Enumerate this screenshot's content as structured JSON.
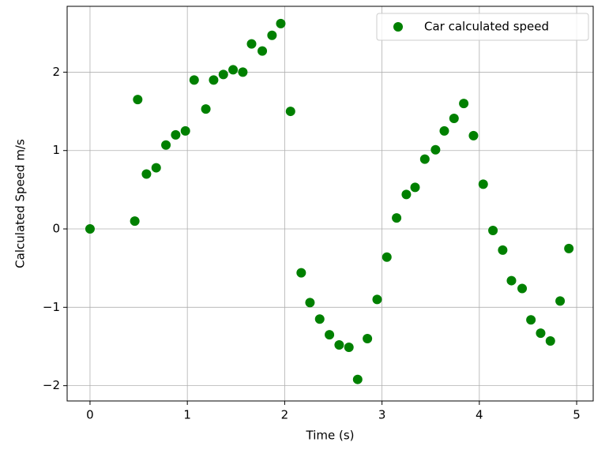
{
  "chart_data": {
    "type": "scatter",
    "x_label": "Time (s)",
    "y_label": "Calculated Speed m/s",
    "x": [
      0,
      0.46,
      0.49,
      0.58,
      0.68,
      0.78,
      0.88,
      0.98,
      1.07,
      1.19,
      1.27,
      1.37,
      1.47,
      1.57,
      1.66,
      1.77,
      1.87,
      1.96,
      2.06,
      2.17,
      2.26,
      2.36,
      2.46,
      2.56,
      2.66,
      2.75,
      2.85,
      2.95,
      3.05,
      3.15,
      3.25,
      3.34,
      3.44,
      3.55,
      3.64,
      3.74,
      3.84,
      3.94,
      4.04,
      4.14,
      4.24,
      4.33,
      4.44,
      4.53,
      4.63,
      4.73,
      4.83,
      4.92
    ],
    "series": [
      {
        "name": "Car calculated speed",
        "color": "#008000",
        "values": [
          0,
          0.1,
          1.65,
          0.7,
          0.78,
          1.07,
          1.2,
          1.25,
          1.9,
          1.53,
          1.9,
          1.97,
          2.03,
          2.0,
          2.36,
          2.27,
          2.47,
          2.62,
          1.5,
          -0.56,
          -0.94,
          -1.15,
          -1.35,
          -1.48,
          -1.51,
          -1.92,
          -1.4,
          -0.9,
          -0.36,
          0.14,
          0.44,
          0.53,
          0.89,
          1.01,
          1.25,
          1.41,
          1.6,
          1.19,
          0.57,
          -0.02,
          -0.27,
          -0.66,
          -0.76,
          -1.16,
          -1.33,
          -1.43,
          -0.92,
          -0.25
        ]
      }
    ],
    "xlim": [
      -0.235,
      5.17
    ],
    "ylim": [
      -2.195,
      2.84
    ],
    "xticks": [
      0,
      1,
      2,
      3,
      4,
      5
    ],
    "yticks": [
      {
        "value": -2,
        "label": "−2"
      },
      {
        "value": -1,
        "label": "−1"
      },
      0,
      1,
      2
    ],
    "grid": true,
    "legend": "upper right"
  }
}
